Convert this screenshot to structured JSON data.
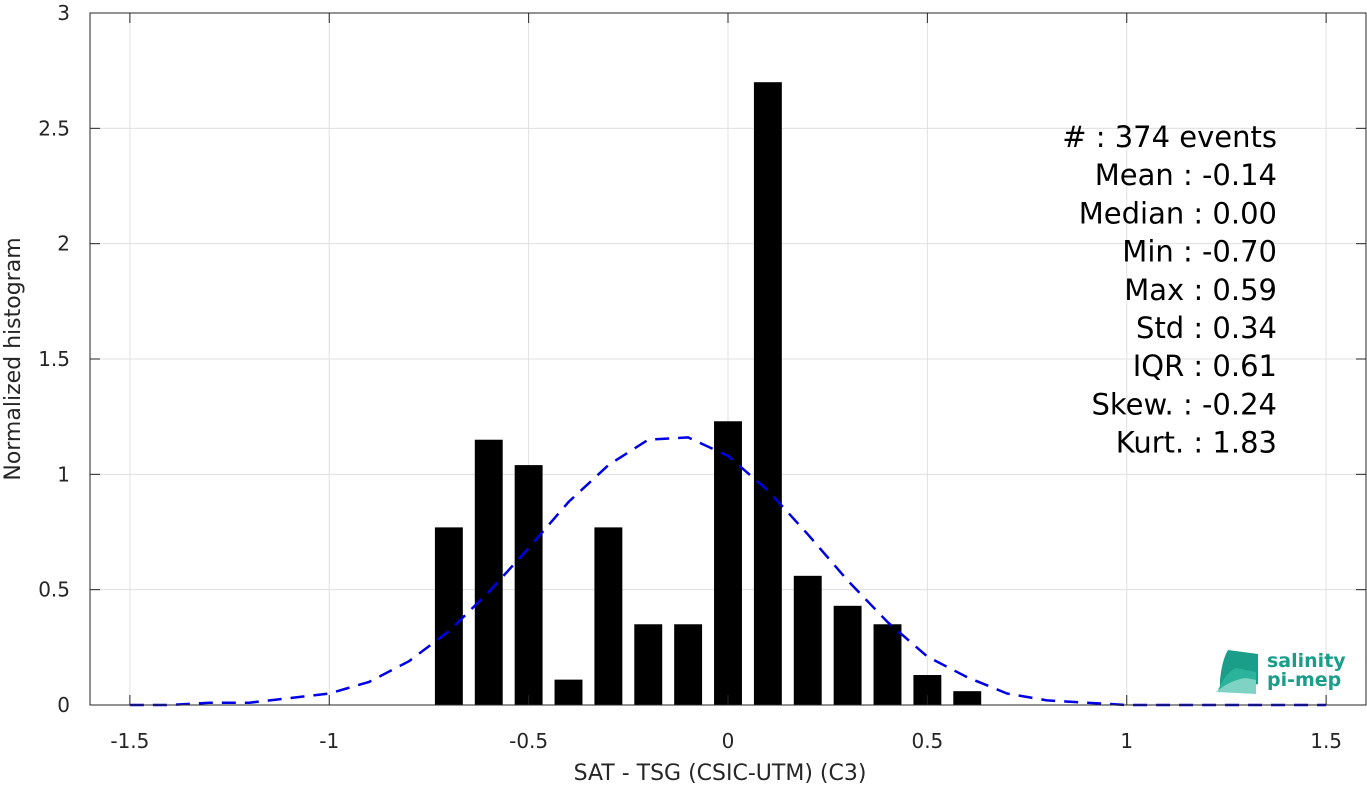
{
  "chart_data": {
    "type": "bar",
    "xlabel": "SAT - TSG (CSIC-UTM) (C3)",
    "ylabel": "Normalized histogram",
    "xlim": [
      -1.6,
      1.6
    ],
    "ylim": [
      0,
      3
    ],
    "grid": true,
    "xticks": [
      -1.5,
      -1,
      -0.5,
      0,
      0.5,
      1,
      1.5
    ],
    "xtick_labels": [
      "-1.5",
      "-1",
      "-0.5",
      "0",
      "0.5",
      "1",
      "1.5"
    ],
    "yticks": [
      0,
      0.5,
      1,
      1.5,
      2,
      2.5,
      3
    ],
    "ytick_labels": [
      "0",
      "0.5",
      "1",
      "1.5",
      "2",
      "2.5",
      "3"
    ],
    "bar_color": "#000000",
    "bar_width": 0.07,
    "bars": [
      {
        "x": -0.7,
        "y": 0.77
      },
      {
        "x": -0.6,
        "y": 1.15
      },
      {
        "x": -0.5,
        "y": 1.04
      },
      {
        "x": -0.4,
        "y": 0.11
      },
      {
        "x": -0.3,
        "y": 0.77
      },
      {
        "x": -0.2,
        "y": 0.35
      },
      {
        "x": -0.1,
        "y": 0.35
      },
      {
        "x": 0.0,
        "y": 1.23
      },
      {
        "x": 0.1,
        "y": 2.7
      },
      {
        "x": 0.2,
        "y": 0.56
      },
      {
        "x": 0.3,
        "y": 0.43
      },
      {
        "x": 0.4,
        "y": 0.35
      },
      {
        "x": 0.5,
        "y": 0.13
      },
      {
        "x": 0.6,
        "y": 0.06
      }
    ],
    "fit_curve": {
      "style": "dashed",
      "color": "#0000e6",
      "points": [
        [
          -1.5,
          0.0
        ],
        [
          -1.4,
          0.0
        ],
        [
          -1.3,
          0.01
        ],
        [
          -1.2,
          0.01
        ],
        [
          -1.1,
          0.03
        ],
        [
          -1.0,
          0.05
        ],
        [
          -0.9,
          0.1
        ],
        [
          -0.8,
          0.19
        ],
        [
          -0.7,
          0.32
        ],
        [
          -0.6,
          0.49
        ],
        [
          -0.5,
          0.68
        ],
        [
          -0.4,
          0.88
        ],
        [
          -0.3,
          1.04
        ],
        [
          -0.2,
          1.15
        ],
        [
          -0.1,
          1.16
        ],
        [
          0.0,
          1.08
        ],
        [
          0.1,
          0.93
        ],
        [
          0.2,
          0.74
        ],
        [
          0.3,
          0.54
        ],
        [
          0.4,
          0.36
        ],
        [
          0.5,
          0.21
        ],
        [
          0.6,
          0.12
        ],
        [
          0.7,
          0.05
        ],
        [
          0.8,
          0.02
        ],
        [
          0.9,
          0.01
        ],
        [
          1.0,
          0.0
        ],
        [
          1.1,
          0.0
        ],
        [
          1.2,
          0.0
        ],
        [
          1.3,
          0.0
        ],
        [
          1.4,
          0.0
        ],
        [
          1.5,
          0.0
        ]
      ]
    },
    "annotations": [
      "#  : 374 events",
      "Mean : -0.14",
      "Median : 0.00",
      "Min : -0.70",
      "Max : 0.59",
      "Std : 0.34",
      "IQR : 0.61",
      "Skew. : -0.24",
      "Kurt. : 1.83"
    ]
  },
  "logo": {
    "line1": "salinity",
    "line2": "pi-mep",
    "colors": [
      "#1a9e8a",
      "#2bb39b",
      "#7fd3c4"
    ]
  }
}
